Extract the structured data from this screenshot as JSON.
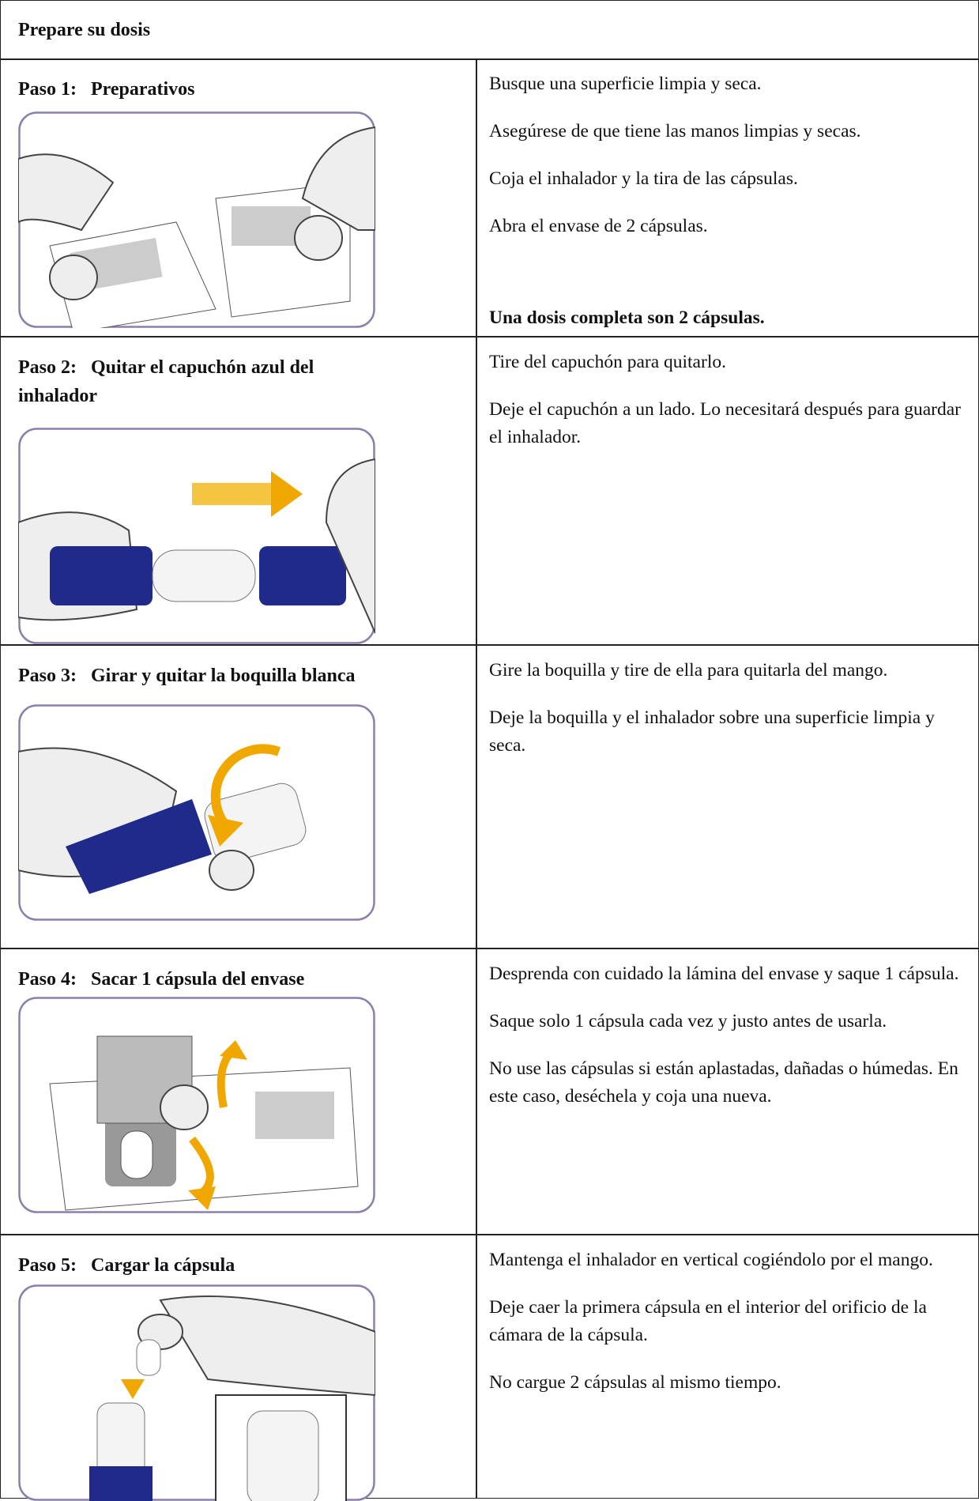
{
  "header": {
    "title": "Prepare su dosis"
  },
  "steps": [
    {
      "title": "Paso 1:   Preparativos",
      "paragraphs": [
        "Busque una superficie limpia y seca.",
        "Asegúrese de que tiene las manos limpias y secas.",
        "Coja el inhalador y la tira de las cápsulas.",
        "Abra el envase de 2 cápsulas."
      ],
      "note": "Una dosis completa son 2 cápsulas."
    },
    {
      "title": "Paso 2:   Quitar el capuchón azul del inhalador",
      "paragraphs": [
        "Tire del capuchón para quitarlo.",
        "Deje el capuchón a un lado. Lo necesitará después para guardar el inhalador."
      ]
    },
    {
      "title": "Paso 3:   Girar y quitar la boquilla blanca",
      "paragraphs": [
        "Gire la boquilla y tire de ella para quitarla del mango.",
        "Deje la boquilla y el inhalador sobre una superficie limpia y seca."
      ]
    },
    {
      "title": "Paso 4:   Sacar 1 cápsula del envase",
      "paragraphs": [
        "Desprenda con cuidado la lámina del envase y saque 1 cápsula.",
        "Saque solo 1 cápsula cada vez y justo antes de usarla.",
        "No use las cápsulas si están aplastadas, dañadas o húmedas. En este caso, deséchela y coja una nueva."
      ]
    },
    {
      "title": "Paso 5:   Cargar la cápsula",
      "paragraphs": [
        "Mantenga el inhalador en vertical cogiéndolo por el mango.",
        "Deje caer la primera cápsula en el interior del orificio de la cámara de la cápsula.",
        "No cargue 2 cápsulas al mismo tiempo."
      ]
    }
  ]
}
